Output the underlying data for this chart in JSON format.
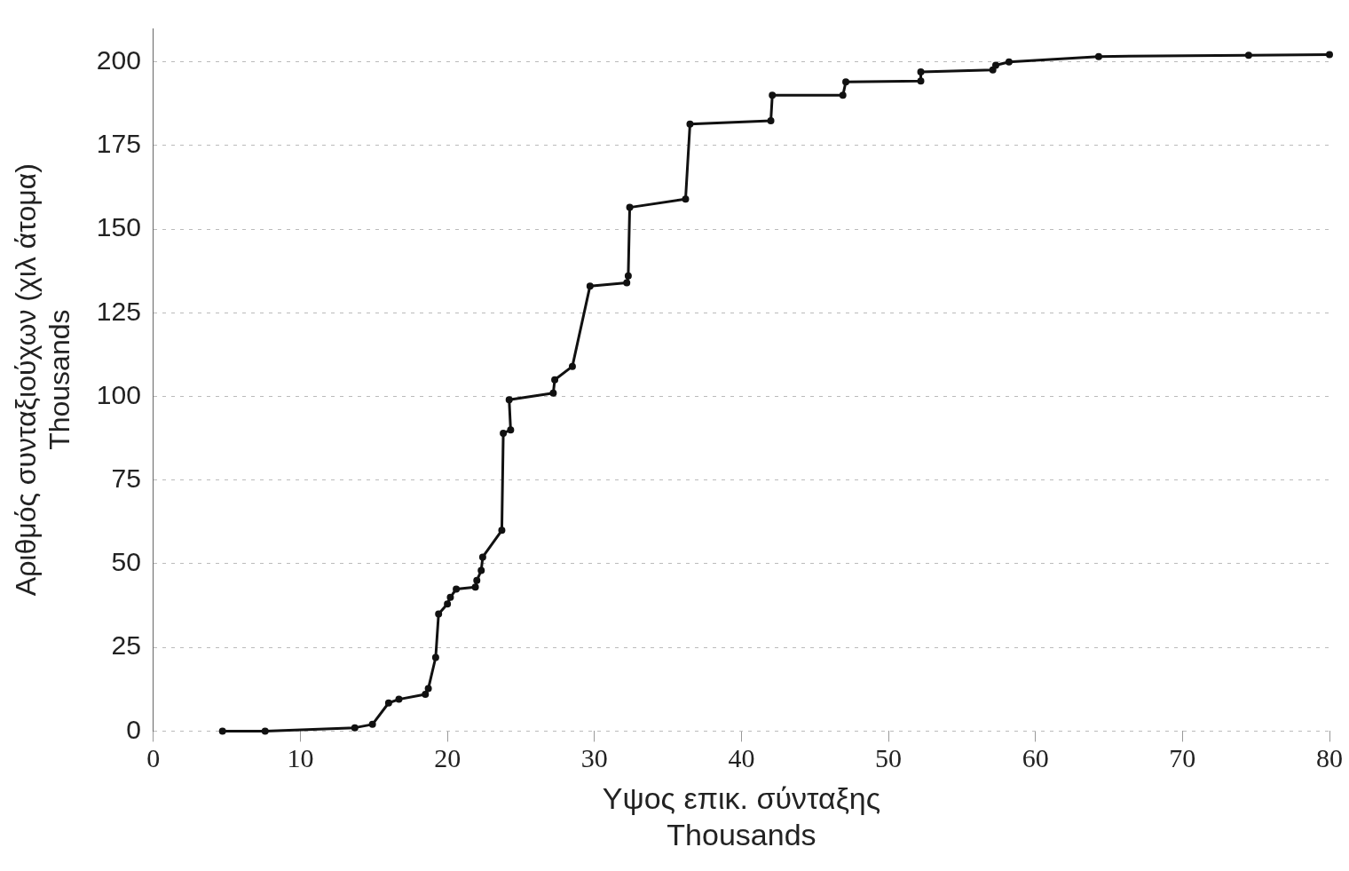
{
  "chart_data": {
    "type": "line",
    "xlabel": "Υψος επικ. σύνταξης\nThousands",
    "ylabel": "Αριθμός συνταξιούχων (χιλ άτομα)\nThousands",
    "x": [
      4.7,
      7.6,
      13.7,
      14.9,
      16.0,
      16.7,
      18.5,
      18.7,
      19.2,
      19.4,
      20.0,
      20.2,
      20.6,
      21.9,
      22.0,
      22.3,
      22.4,
      23.7,
      23.8,
      24.3,
      24.2,
      27.2,
      27.3,
      28.5,
      29.7,
      32.2,
      32.3,
      32.4,
      36.2,
      36.5,
      42.0,
      42.1,
      46.9,
      47.1,
      52.2,
      52.2,
      57.1,
      57.3,
      58.2,
      64.3,
      74.5,
      80.0
    ],
    "series": [
      {
        "color": "#111111",
        "values": [
          0,
          0,
          1,
          2,
          8.4,
          9.5,
          11,
          12.7,
          22,
          35,
          38,
          40,
          42.4,
          43,
          45,
          48,
          52,
          60,
          89,
          90,
          99,
          101,
          105,
          109,
          133,
          134,
          136,
          156.5,
          159,
          181.4,
          182.4,
          190,
          190,
          194,
          194.3,
          197,
          197.6,
          199,
          200,
          201.6,
          202,
          202.2
        ]
      }
    ],
    "xlim": [
      0,
      80
    ],
    "xticks": [
      0,
      10,
      20,
      30,
      40,
      50,
      60,
      70,
      80
    ],
    "ylim": [
      0,
      210
    ],
    "yticks": [
      0,
      25,
      50,
      75,
      100,
      125,
      150,
      175,
      200
    ],
    "grid": "y",
    "legend": false,
    "marker": "circle",
    "line_style": "solid"
  }
}
